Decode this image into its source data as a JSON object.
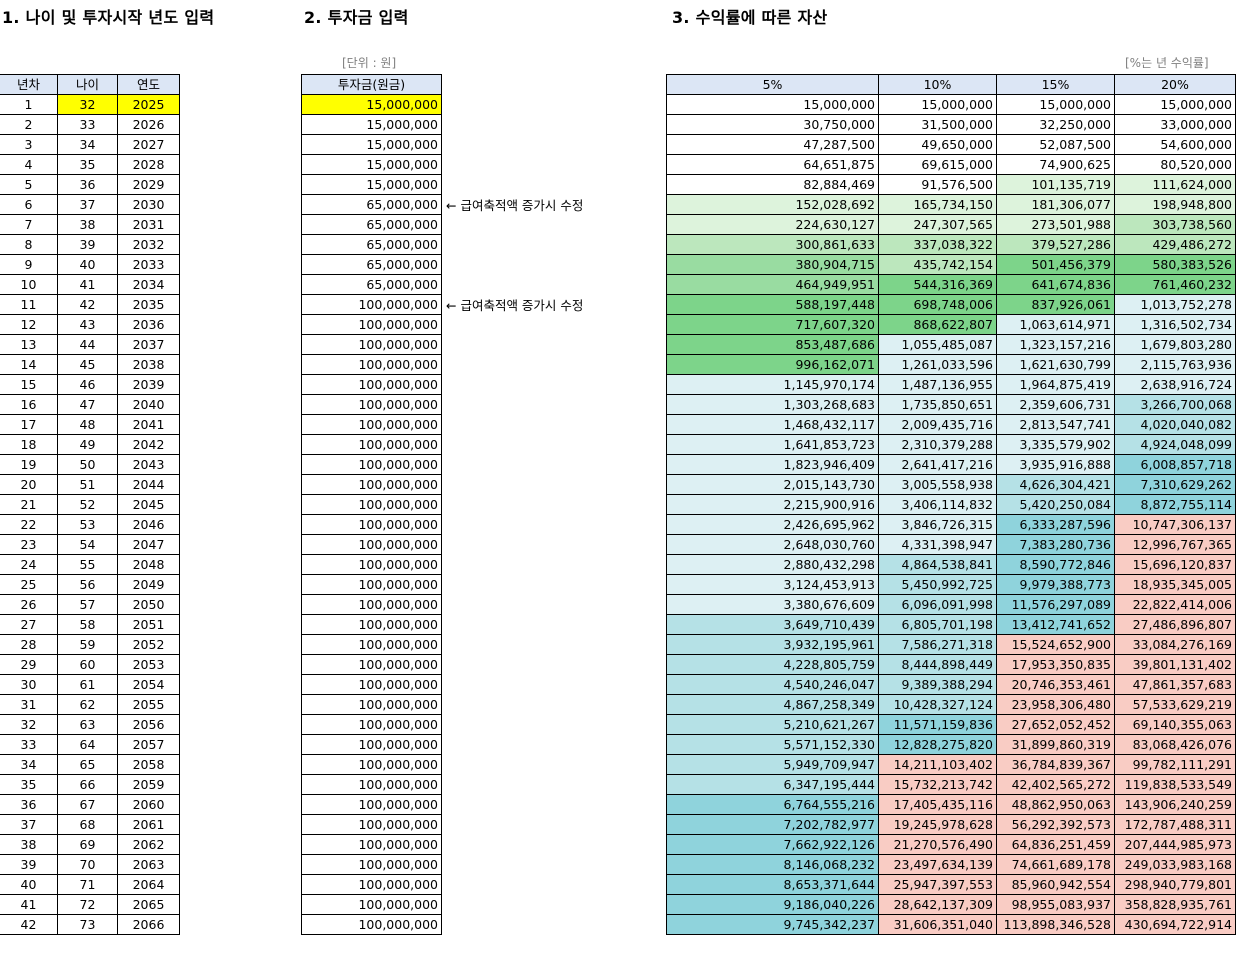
{
  "section1": {
    "title": "1. 나이 및 투자시작 년도 입력"
  },
  "section2": {
    "title": "2. 투자금 입력",
    "unit_note": "[단위 : 원]"
  },
  "section3": {
    "title": "3. 수익률에 따른 자산",
    "unit_note": "[%는 년 수익률]"
  },
  "age_table": {
    "headers": [
      "년차",
      "나이",
      "연도"
    ],
    "rows": [
      [
        "1",
        "32",
        "2025"
      ],
      [
        "2",
        "33",
        "2026"
      ],
      [
        "3",
        "34",
        "2027"
      ],
      [
        "4",
        "35",
        "2028"
      ],
      [
        "5",
        "36",
        "2029"
      ],
      [
        "6",
        "37",
        "2030"
      ],
      [
        "7",
        "38",
        "2031"
      ],
      [
        "8",
        "39",
        "2032"
      ],
      [
        "9",
        "40",
        "2033"
      ],
      [
        "10",
        "41",
        "2034"
      ],
      [
        "11",
        "42",
        "2035"
      ],
      [
        "12",
        "43",
        "2036"
      ],
      [
        "13",
        "44",
        "2037"
      ],
      [
        "14",
        "45",
        "2038"
      ],
      [
        "15",
        "46",
        "2039"
      ],
      [
        "16",
        "47",
        "2040"
      ],
      [
        "17",
        "48",
        "2041"
      ],
      [
        "18",
        "49",
        "2042"
      ],
      [
        "19",
        "50",
        "2043"
      ],
      [
        "20",
        "51",
        "2044"
      ],
      [
        "21",
        "52",
        "2045"
      ],
      [
        "22",
        "53",
        "2046"
      ],
      [
        "23",
        "54",
        "2047"
      ],
      [
        "24",
        "55",
        "2048"
      ],
      [
        "25",
        "56",
        "2049"
      ],
      [
        "26",
        "57",
        "2050"
      ],
      [
        "27",
        "58",
        "2051"
      ],
      [
        "28",
        "59",
        "2052"
      ],
      [
        "29",
        "60",
        "2053"
      ],
      [
        "30",
        "61",
        "2054"
      ],
      [
        "31",
        "62",
        "2055"
      ],
      [
        "32",
        "63",
        "2056"
      ],
      [
        "33",
        "64",
        "2057"
      ],
      [
        "34",
        "65",
        "2058"
      ],
      [
        "35",
        "66",
        "2059"
      ],
      [
        "36",
        "67",
        "2060"
      ],
      [
        "37",
        "68",
        "2061"
      ],
      [
        "38",
        "69",
        "2062"
      ],
      [
        "39",
        "70",
        "2063"
      ],
      [
        "40",
        "71",
        "2064"
      ],
      [
        "41",
        "72",
        "2065"
      ],
      [
        "42",
        "73",
        "2066"
      ]
    ]
  },
  "invest_table": {
    "header": "투자금(원금)",
    "values": [
      "15,000,000",
      "15,000,000",
      "15,000,000",
      "15,000,000",
      "15,000,000",
      "65,000,000",
      "65,000,000",
      "65,000,000",
      "65,000,000",
      "65,000,000",
      "100,000,000",
      "100,000,000",
      "100,000,000",
      "100,000,000",
      "100,000,000",
      "100,000,000",
      "100,000,000",
      "100,000,000",
      "100,000,000",
      "100,000,000",
      "100,000,000",
      "100,000,000",
      "100,000,000",
      "100,000,000",
      "100,000,000",
      "100,000,000",
      "100,000,000",
      "100,000,000",
      "100,000,000",
      "100,000,000",
      "100,000,000",
      "100,000,000",
      "100,000,000",
      "100,000,000",
      "100,000,000",
      "100,000,000",
      "100,000,000",
      "100,000,000",
      "100,000,000",
      "100,000,000",
      "100,000,000",
      "100,000,000"
    ],
    "notes": [
      {
        "row": 6,
        "text": "← 급여축적액 증가시 수정"
      },
      {
        "row": 11,
        "text": "← 급여축적액 증가시 수정"
      }
    ]
  },
  "colors": {
    "header_bg": "#dce6f5",
    "highlight_yellow": "#ffff00",
    "green1": "#ddf3dc",
    "green2": "#bce7bd",
    "green3": "#99dca1",
    "green4": "#7dd48a",
    "teal1": "#ddf0f3",
    "teal2": "#b5e1e6",
    "teal3": "#8fd3dc",
    "pink": "#f9ccc4"
  },
  "asset_table": {
    "headers": [
      "5%",
      "10%",
      "15%",
      "20%"
    ],
    "rows": [
      [
        "15,000,000",
        "15,000,000",
        "15,000,000",
        "15,000,000"
      ],
      [
        "30,750,000",
        "31,500,000",
        "32,250,000",
        "33,000,000"
      ],
      [
        "47,287,500",
        "49,650,000",
        "52,087,500",
        "54,600,000"
      ],
      [
        "64,651,875",
        "69,615,000",
        "74,900,625",
        "80,520,000"
      ],
      [
        "82,884,469",
        "91,576,500",
        "101,135,719",
        "111,624,000"
      ],
      [
        "152,028,692",
        "165,734,150",
        "181,306,077",
        "198,948,800"
      ],
      [
        "224,630,127",
        "247,307,565",
        "273,501,988",
        "303,738,560"
      ],
      [
        "300,861,633",
        "337,038,322",
        "379,527,286",
        "429,486,272"
      ],
      [
        "380,904,715",
        "435,742,154",
        "501,456,379",
        "580,383,526"
      ],
      [
        "464,949,951",
        "544,316,369",
        "641,674,836",
        "761,460,232"
      ],
      [
        "588,197,448",
        "698,748,006",
        "837,926,061",
        "1,013,752,278"
      ],
      [
        "717,607,320",
        "868,622,807",
        "1,063,614,971",
        "1,316,502,734"
      ],
      [
        "853,487,686",
        "1,055,485,087",
        "1,323,157,216",
        "1,679,803,280"
      ],
      [
        "996,162,071",
        "1,261,033,596",
        "1,621,630,799",
        "2,115,763,936"
      ],
      [
        "1,145,970,174",
        "1,487,136,955",
        "1,964,875,419",
        "2,638,916,724"
      ],
      [
        "1,303,268,683",
        "1,735,850,651",
        "2,359,606,731",
        "3,266,700,068"
      ],
      [
        "1,468,432,117",
        "2,009,435,716",
        "2,813,547,741",
        "4,020,040,082"
      ],
      [
        "1,641,853,723",
        "2,310,379,288",
        "3,335,579,902",
        "4,924,048,099"
      ],
      [
        "1,823,946,409",
        "2,641,417,216",
        "3,935,916,888",
        "6,008,857,718"
      ],
      [
        "2,015,143,730",
        "3,005,558,938",
        "4,626,304,421",
        "7,310,629,262"
      ],
      [
        "2,215,900,916",
        "3,406,114,832",
        "5,420,250,084",
        "8,872,755,114"
      ],
      [
        "2,426,695,962",
        "3,846,726,315",
        "6,333,287,596",
        "10,747,306,137"
      ],
      [
        "2,648,030,760",
        "4,331,398,947",
        "7,383,280,736",
        "12,996,767,365"
      ],
      [
        "2,880,432,298",
        "4,864,538,841",
        "8,590,772,846",
        "15,696,120,837"
      ],
      [
        "3,124,453,913",
        "5,450,992,725",
        "9,979,388,773",
        "18,935,345,005"
      ],
      [
        "3,380,676,609",
        "6,096,091,998",
        "11,576,297,089",
        "22,822,414,006"
      ],
      [
        "3,649,710,439",
        "6,805,701,198",
        "13,412,741,652",
        "27,486,896,807"
      ],
      [
        "3,932,195,961",
        "7,586,271,318",
        "15,524,652,900",
        "33,084,276,169"
      ],
      [
        "4,228,805,759",
        "8,444,898,449",
        "17,953,350,835",
        "39,801,131,402"
      ],
      [
        "4,540,246,047",
        "9,389,388,294",
        "20,746,353,461",
        "47,861,357,683"
      ],
      [
        "4,867,258,349",
        "10,428,327,124",
        "23,958,306,480",
        "57,533,629,219"
      ],
      [
        "5,210,621,267",
        "11,571,159,836",
        "27,652,052,452",
        "69,140,355,063"
      ],
      [
        "5,571,152,330",
        "12,828,275,820",
        "31,899,860,319",
        "83,068,426,076"
      ],
      [
        "5,949,709,947",
        "14,211,103,402",
        "36,784,839,367",
        "99,782,111,291"
      ],
      [
        "6,347,195,444",
        "15,732,213,742",
        "42,402,565,272",
        "119,838,533,549"
      ],
      [
        "6,764,555,216",
        "17,405,435,116",
        "48,862,950,063",
        "143,906,240,259"
      ],
      [
        "7,202,782,977",
        "19,245,978,628",
        "56,292,392,573",
        "172,787,488,311"
      ],
      [
        "7,662,922,126",
        "21,270,576,490",
        "64,836,251,459",
        "207,444,985,973"
      ],
      [
        "8,146,068,232",
        "23,497,634,139",
        "74,661,689,178",
        "249,033,983,168"
      ],
      [
        "8,653,371,644",
        "25,947,397,553",
        "85,960,942,554",
        "298,940,779,801"
      ],
      [
        "9,186,040,226",
        "28,642,137,309",
        "98,955,083,937",
        "358,828,935,761"
      ],
      [
        "9,745,342,237",
        "31,606,351,040",
        "113,898,346,528",
        "430,694,722,914"
      ]
    ]
  }
}
